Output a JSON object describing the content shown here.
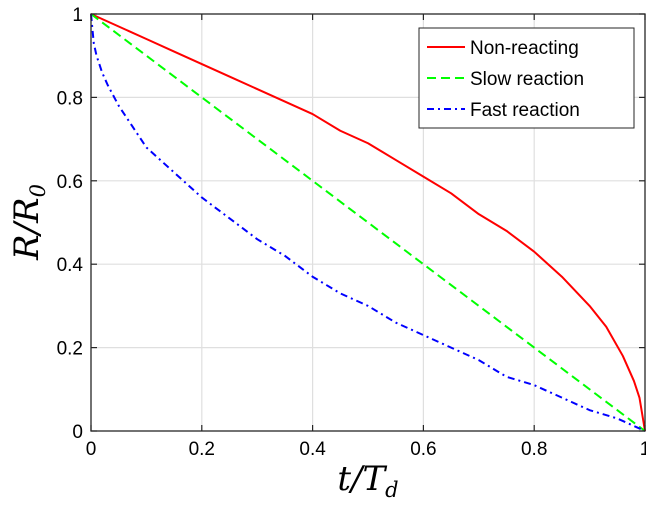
{
  "chart_data": {
    "type": "line",
    "xlabel": "t/T",
    "xlabel_sub": "d",
    "ylabel": "R/R",
    "ylabel_sub": "0",
    "xlim": [
      0,
      1
    ],
    "ylim": [
      0,
      1
    ],
    "x_ticks": [
      0,
      0.2,
      0.4,
      0.6,
      0.8,
      1
    ],
    "y_ticks": [
      0,
      0.2,
      0.4,
      0.6,
      0.8,
      1
    ],
    "x_tick_labels": [
      "0",
      "0.2",
      "0.4",
      "0.6",
      "0.8",
      "1"
    ],
    "y_tick_labels": [
      "0",
      "0.2",
      "0.4",
      "0.6",
      "0.8",
      "1"
    ],
    "grid": true,
    "legend_position": "top-right",
    "series": [
      {
        "name": "Non-reacting",
        "color": "#ff0000",
        "dash": "solid",
        "x": [
          0,
          0.05,
          0.1,
          0.15,
          0.2,
          0.25,
          0.3,
          0.35,
          0.4,
          0.45,
          0.5,
          0.55,
          0.6,
          0.65,
          0.7,
          0.75,
          0.8,
          0.85,
          0.9,
          0.93,
          0.96,
          0.98,
          0.99,
          1
        ],
        "y": [
          1,
          0.97,
          0.94,
          0.91,
          0.88,
          0.85,
          0.82,
          0.79,
          0.76,
          0.72,
          0.69,
          0.65,
          0.61,
          0.57,
          0.52,
          0.48,
          0.43,
          0.37,
          0.3,
          0.25,
          0.18,
          0.12,
          0.08,
          0
        ]
      },
      {
        "name": "Slow reaction",
        "color": "#00ff00",
        "dash": "dashed",
        "x": [
          0,
          0.2,
          0.4,
          0.6,
          0.8,
          1
        ],
        "y": [
          1,
          0.8,
          0.6,
          0.4,
          0.2,
          0
        ]
      },
      {
        "name": "Fast reaction",
        "color": "#0000ff",
        "dash": "dashdot",
        "x": [
          0,
          0.005,
          0.01,
          0.02,
          0.03,
          0.05,
          0.075,
          0.1,
          0.15,
          0.2,
          0.25,
          0.3,
          0.35,
          0.4,
          0.45,
          0.5,
          0.55,
          0.6,
          0.65,
          0.7,
          0.75,
          0.8,
          0.85,
          0.9,
          0.95,
          1
        ],
        "y": [
          1,
          0.93,
          0.9,
          0.86,
          0.83,
          0.78,
          0.73,
          0.68,
          0.62,
          0.56,
          0.51,
          0.46,
          0.42,
          0.37,
          0.33,
          0.3,
          0.26,
          0.23,
          0.2,
          0.17,
          0.13,
          0.11,
          0.08,
          0.05,
          0.03,
          0
        ]
      }
    ]
  }
}
